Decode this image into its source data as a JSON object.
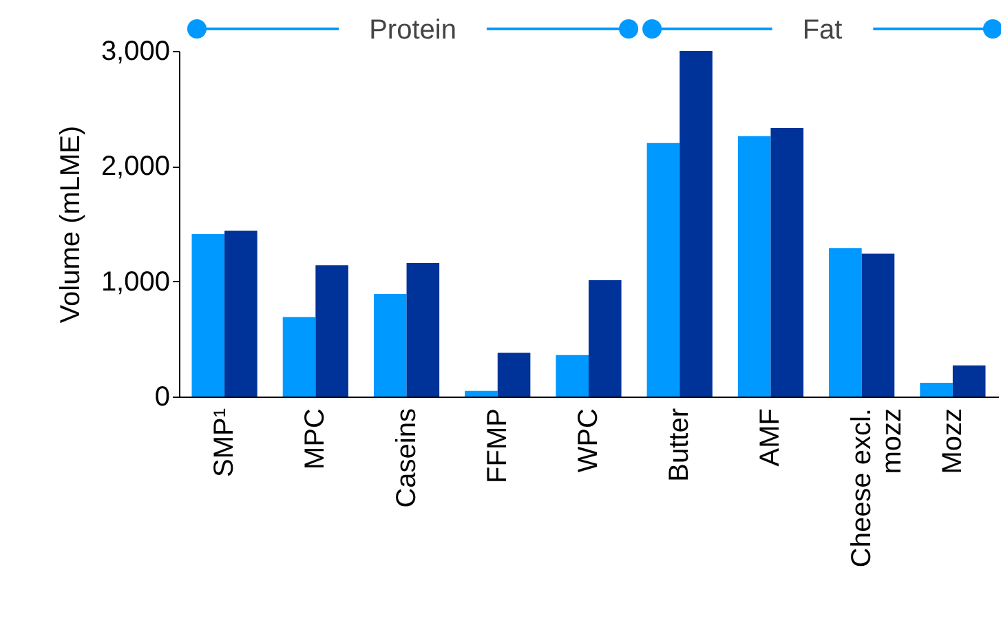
{
  "chart_data": {
    "type": "bar",
    "ylabel": "Volume (mLME)",
    "categories": [
      "SMP¹",
      "MPC",
      "Caseins",
      "FFMP",
      "WPC",
      "Butter",
      "AMF",
      "Cheese excl. mozz",
      "Mozz"
    ],
    "series": [
      {
        "color": "#0099ff",
        "values": [
          1410,
          690,
          890,
          50,
          360,
          2200,
          2260,
          1290,
          120
        ]
      },
      {
        "color": "#003399",
        "values": [
          1440,
          1140,
          1160,
          380,
          1010,
          3000,
          2330,
          1240,
          270
        ]
      }
    ],
    "ylim": [
      0,
      3000
    ],
    "yticks": [
      0,
      {
        "value": 1000,
        "label": "1,000"
      },
      {
        "value": 2000,
        "label": "2,000"
      },
      {
        "value": 3000,
        "label": "3,000"
      }
    ],
    "annotations": [
      "Protein",
      "Fat"
    ]
  }
}
